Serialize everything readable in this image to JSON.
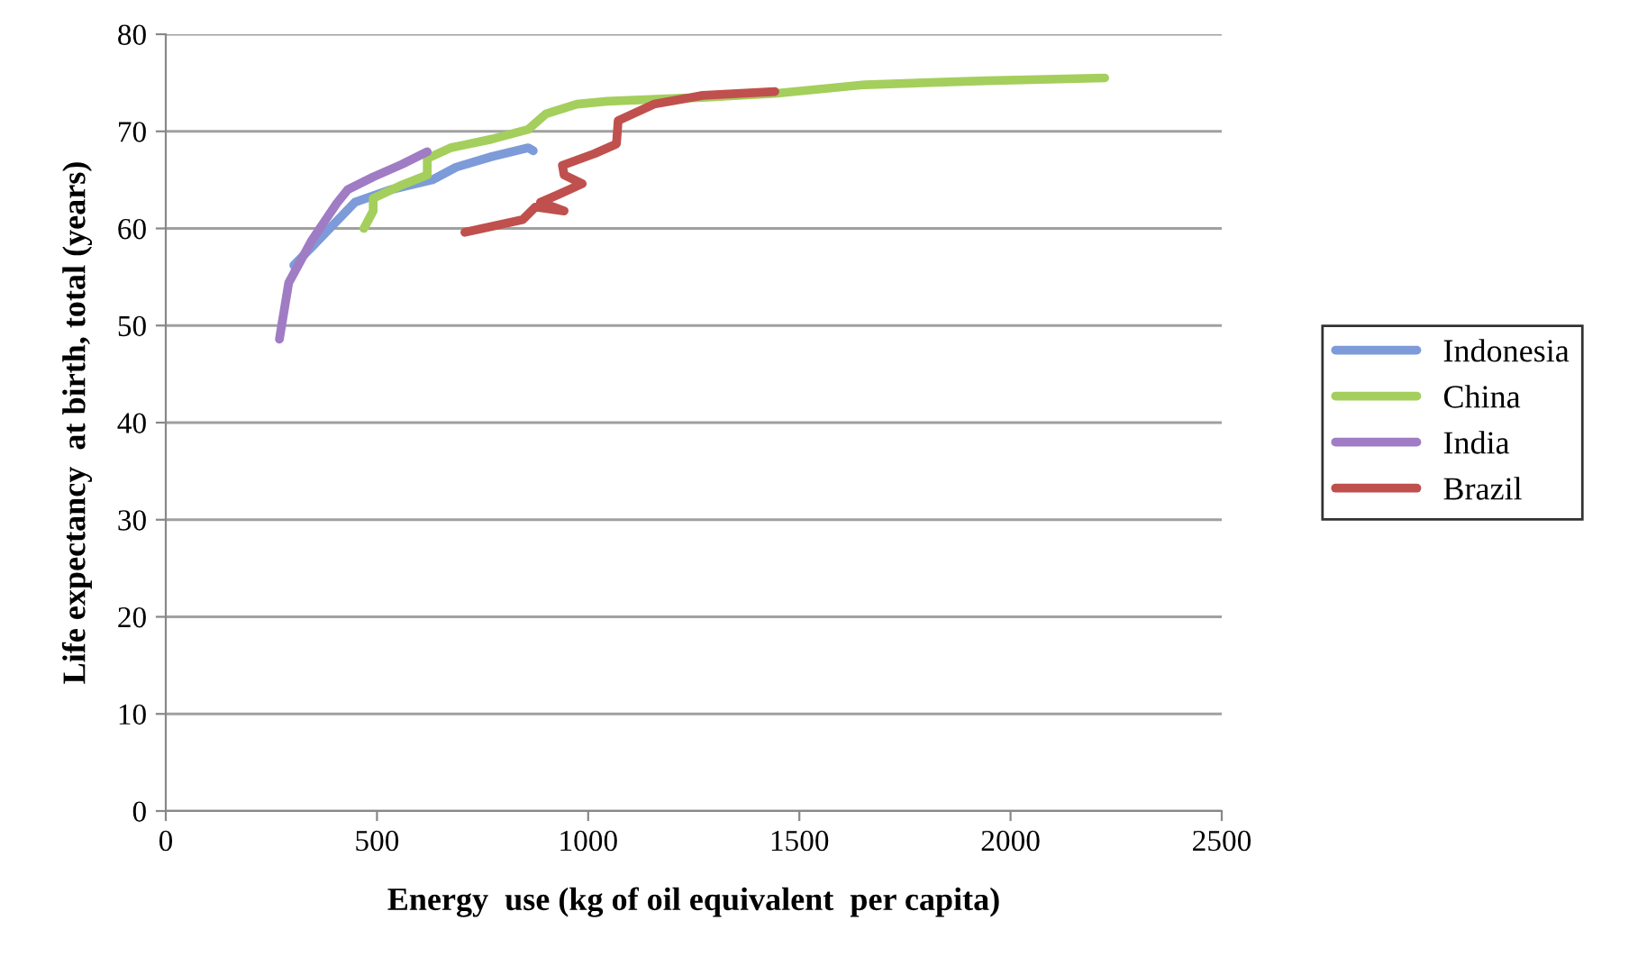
{
  "chart_data": {
    "type": "line",
    "xlabel": "Energy  use (kg of oil equivalent  per capita)",
    "ylabel": "Life expectancy  at birth, total (years)",
    "xlim": [
      0,
      2500
    ],
    "xticks": [
      0,
      500,
      1000,
      1500,
      2000,
      2500
    ],
    "ylim": [
      0,
      80
    ],
    "yticks": [
      0,
      10,
      20,
      30,
      40,
      50,
      60,
      70,
      80
    ],
    "grid": "y",
    "legend": "right",
    "marker": "none",
    "line_style": "solid",
    "series": [
      {
        "name": "Indonesia",
        "color": "#7d9bd8",
        "x": [
          303,
          346,
          448,
          533,
          631,
          687,
          772,
          858,
          870
        ],
        "values": [
          56.2,
          58.1,
          62.7,
          64.0,
          65.0,
          66.3,
          67.4,
          68.3,
          68.0
        ]
      },
      {
        "name": "China",
        "color": "#a4cf5c",
        "x": [
          469,
          491,
          491,
          555,
          619,
          619,
          674,
          772,
          858,
          900,
          973,
          1045,
          1271,
          1442,
          1655,
          1941,
          2223
        ],
        "values": [
          60.0,
          61.8,
          63.1,
          64.4,
          65.5,
          67.2,
          68.3,
          69.2,
          70.2,
          71.8,
          72.8,
          73.1,
          73.5,
          73.9,
          74.8,
          75.2,
          75.5
        ]
      },
      {
        "name": "India",
        "color": "#a07cc5",
        "x": [
          269,
          291,
          346,
          405,
          431,
          491,
          559,
          619
        ],
        "values": [
          48.6,
          54.4,
          58.8,
          62.6,
          64.0,
          65.3,
          66.6,
          67.9
        ]
      },
      {
        "name": "Brazil",
        "color": "#c0504d",
        "x": [
          708,
          845,
          875,
          943,
          887,
          930,
          986,
          943,
          939,
          1015,
          1067,
          1071,
          1156,
          1271,
          1442
        ],
        "values": [
          59.6,
          60.9,
          62.2,
          61.8,
          62.7,
          63.5,
          64.6,
          65.5,
          66.5,
          67.7,
          68.7,
          71.1,
          72.8,
          73.7,
          74.1
        ]
      }
    ]
  }
}
